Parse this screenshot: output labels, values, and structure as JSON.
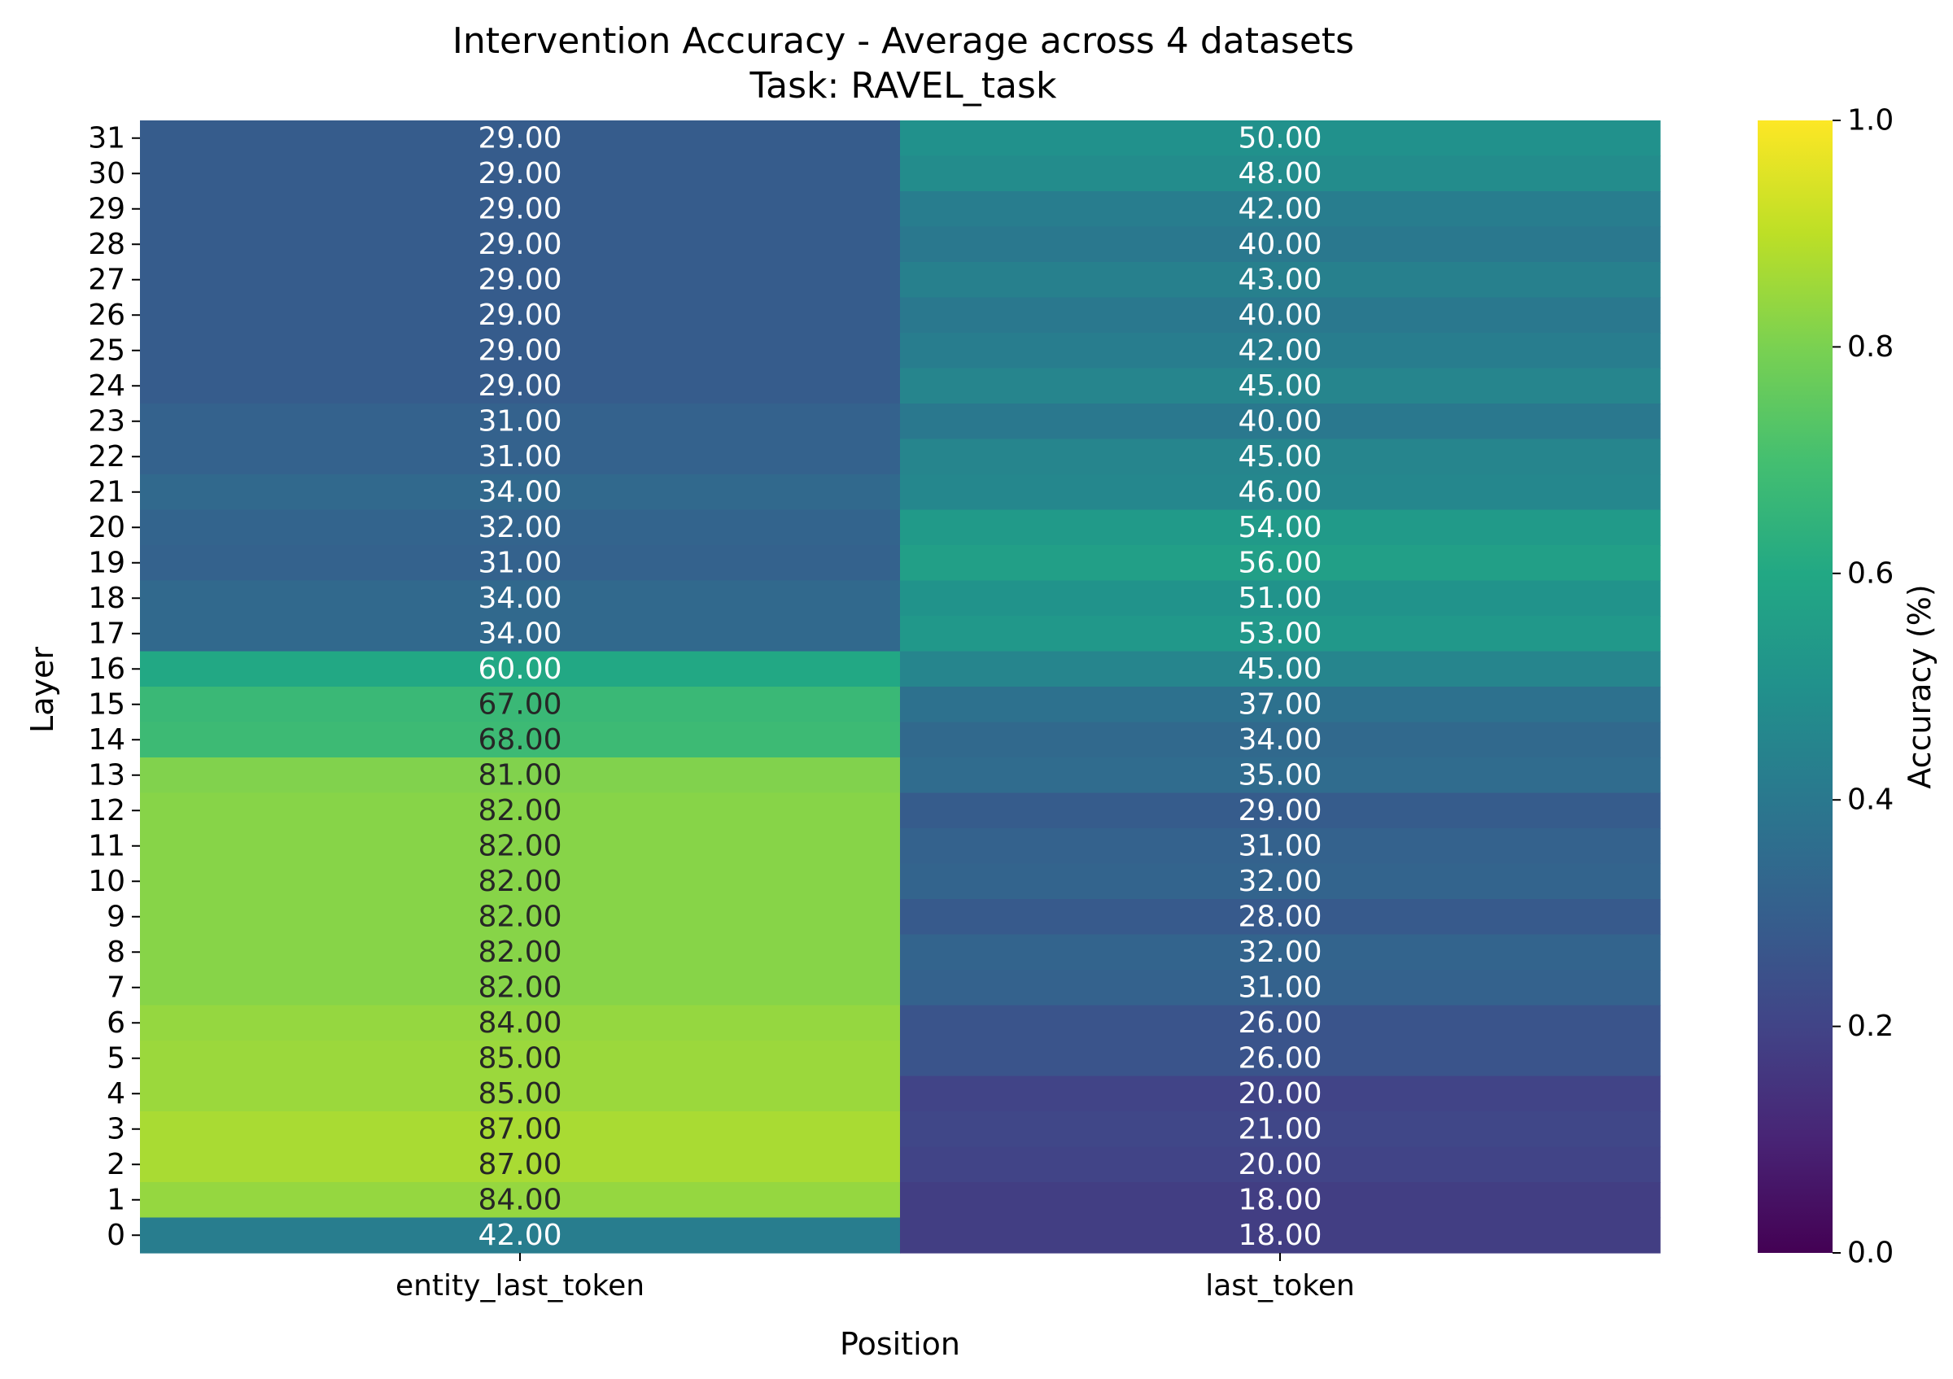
{
  "chart_data": {
    "type": "heatmap",
    "title": "Intervention Accuracy - Average across 4 datasets",
    "subtitle": "Task: RAVEL_task",
    "xlabel": "Position",
    "ylabel": "Layer",
    "colorbar_label": "Accuracy (%)",
    "colormap": "viridis",
    "color_range": [
      0,
      1
    ],
    "colorbar_ticks": [
      "0.0",
      "0.2",
      "0.4",
      "0.6",
      "0.8",
      "1.0"
    ],
    "columns": [
      "entity_last_token",
      "last_token"
    ],
    "rows": [
      "31",
      "30",
      "29",
      "28",
      "27",
      "26",
      "25",
      "24",
      "23",
      "22",
      "21",
      "20",
      "19",
      "18",
      "17",
      "16",
      "15",
      "14",
      "13",
      "12",
      "11",
      "10",
      "9",
      "8",
      "7",
      "6",
      "5",
      "4",
      "3",
      "2",
      "1",
      "0"
    ],
    "values": [
      [
        29,
        50
      ],
      [
        29,
        48
      ],
      [
        29,
        42
      ],
      [
        29,
        40
      ],
      [
        29,
        43
      ],
      [
        29,
        40
      ],
      [
        29,
        42
      ],
      [
        29,
        45
      ],
      [
        31,
        40
      ],
      [
        31,
        45
      ],
      [
        34,
        46
      ],
      [
        32,
        54
      ],
      [
        31,
        56
      ],
      [
        34,
        51
      ],
      [
        34,
        53
      ],
      [
        60,
        45
      ],
      [
        67,
        37
      ],
      [
        68,
        34
      ],
      [
        81,
        35
      ],
      [
        82,
        29
      ],
      [
        82,
        31
      ],
      [
        82,
        32
      ],
      [
        82,
        28
      ],
      [
        82,
        32
      ],
      [
        82,
        31
      ],
      [
        84,
        26
      ],
      [
        85,
        26
      ],
      [
        85,
        20
      ],
      [
        87,
        21
      ],
      [
        87,
        20
      ],
      [
        84,
        18
      ],
      [
        42,
        18
      ]
    ],
    "cell_labels": [
      [
        "29.00",
        "50.00"
      ],
      [
        "29.00",
        "48.00"
      ],
      [
        "29.00",
        "42.00"
      ],
      [
        "29.00",
        "40.00"
      ],
      [
        "29.00",
        "43.00"
      ],
      [
        "29.00",
        "40.00"
      ],
      [
        "29.00",
        "42.00"
      ],
      [
        "29.00",
        "45.00"
      ],
      [
        "31.00",
        "40.00"
      ],
      [
        "31.00",
        "45.00"
      ],
      [
        "34.00",
        "46.00"
      ],
      [
        "32.00",
        "54.00"
      ],
      [
        "31.00",
        "56.00"
      ],
      [
        "34.00",
        "51.00"
      ],
      [
        "34.00",
        "53.00"
      ],
      [
        "60.00",
        "45.00"
      ],
      [
        "67.00",
        "37.00"
      ],
      [
        "68.00",
        "34.00"
      ],
      [
        "81.00",
        "35.00"
      ],
      [
        "82.00",
        "29.00"
      ],
      [
        "82.00",
        "31.00"
      ],
      [
        "82.00",
        "32.00"
      ],
      [
        "82.00",
        "28.00"
      ],
      [
        "82.00",
        "32.00"
      ],
      [
        "82.00",
        "31.00"
      ],
      [
        "84.00",
        "26.00"
      ],
      [
        "85.00",
        "26.00"
      ],
      [
        "85.00",
        "20.00"
      ],
      [
        "87.00",
        "21.00"
      ],
      [
        "87.00",
        "20.00"
      ],
      [
        "84.00",
        "18.00"
      ],
      [
        "42.00",
        "18.00"
      ]
    ]
  }
}
